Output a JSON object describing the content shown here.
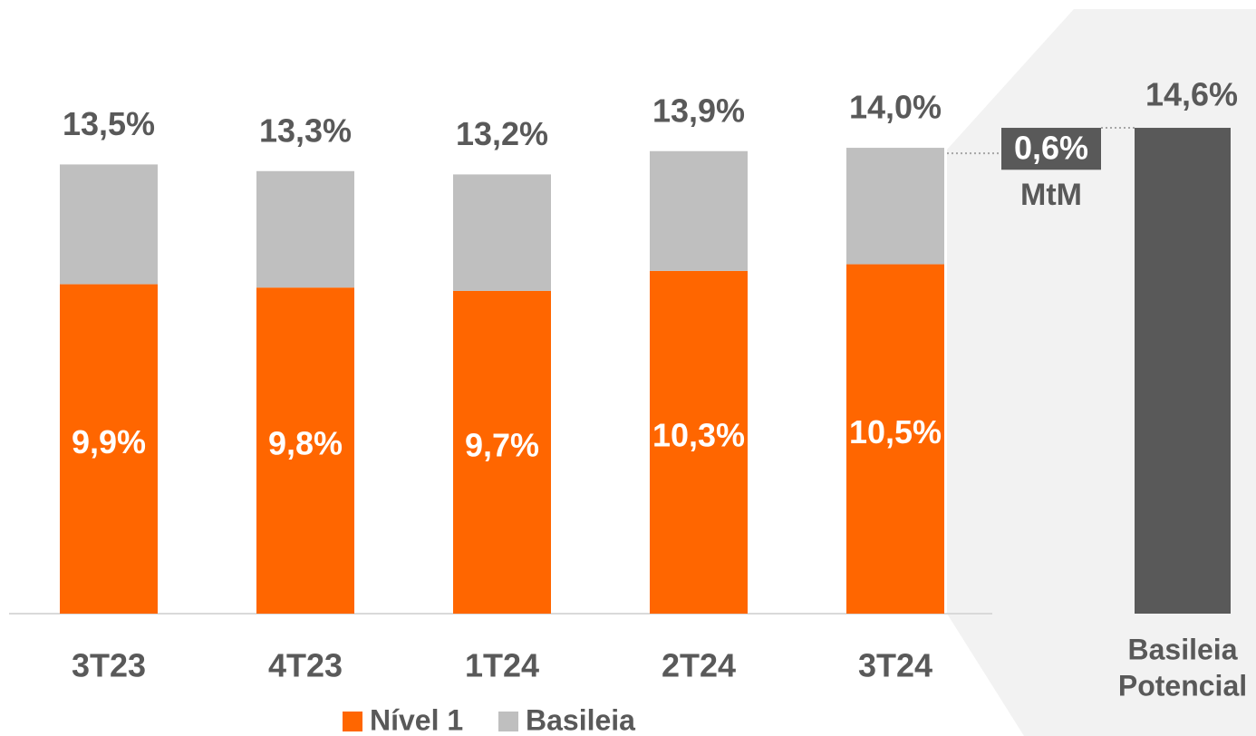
{
  "chart_data": {
    "type": "stacked_bar",
    "categories": [
      "3T23",
      "4T23",
      "1T24",
      "2T24",
      "3T24"
    ],
    "series": [
      {
        "name": "Nível 1",
        "color": "#FF6600",
        "values": [
          9.9,
          9.8,
          9.7,
          10.3,
          10.5
        ],
        "value_labels": [
          "9,9%",
          "9,8%",
          "9,7%",
          "10,3%",
          "10,5%"
        ]
      },
      {
        "name": "Basileia",
        "color": "#BFBFBF",
        "values": [
          3.6,
          3.5,
          3.5,
          3.6,
          3.5
        ]
      }
    ],
    "totals": [
      13.5,
      13.3,
      13.2,
      13.9,
      14.0
    ],
    "total_labels": [
      "13,5%",
      "13,3%",
      "13,2%",
      "13,9%",
      "14,0%"
    ],
    "mtm": {
      "label": "MtM",
      "value": 0.6,
      "value_label": "0,6%"
    },
    "potential": {
      "label_lines": [
        "Basileia",
        "Potencial"
      ],
      "value": 14.6,
      "value_label": "14,6%",
      "color": "#595959"
    },
    "ylim": [
      0,
      15.5
    ]
  }
}
